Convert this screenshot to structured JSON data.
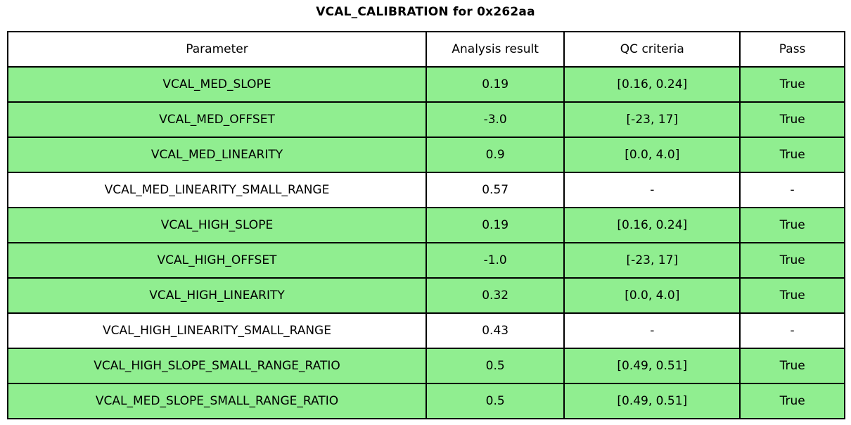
{
  "title": "VCAL_CALIBRATION for 0x262aa",
  "colors": {
    "pass_green": "#90EE90",
    "row_white": "#FFFFFF",
    "border": "#000000",
    "text": "#000000",
    "background": "#FFFFFF"
  },
  "chart_data": {
    "type": "table",
    "title": "VCAL_CALIBRATION for 0x262aa",
    "columns": [
      "Parameter",
      "Analysis result",
      "QC criteria",
      "Pass"
    ],
    "rows": [
      {
        "parameter": "VCAL_MED_SLOPE",
        "analysis_result": "0.19",
        "qc_criteria": "[0.16, 0.24]",
        "pass": "True",
        "highlighted": true
      },
      {
        "parameter": "VCAL_MED_OFFSET",
        "analysis_result": "-3.0",
        "qc_criteria": "[-23, 17]",
        "pass": "True",
        "highlighted": true
      },
      {
        "parameter": "VCAL_MED_LINEARITY",
        "analysis_result": "0.9",
        "qc_criteria": "[0.0, 4.0]",
        "pass": "True",
        "highlighted": true
      },
      {
        "parameter": "VCAL_MED_LINEARITY_SMALL_RANGE",
        "analysis_result": "0.57",
        "qc_criteria": "-",
        "pass": "-",
        "highlighted": false
      },
      {
        "parameter": "VCAL_HIGH_SLOPE",
        "analysis_result": "0.19",
        "qc_criteria": "[0.16, 0.24]",
        "pass": "True",
        "highlighted": true
      },
      {
        "parameter": "VCAL_HIGH_OFFSET",
        "analysis_result": "-1.0",
        "qc_criteria": "[-23, 17]",
        "pass": "True",
        "highlighted": true
      },
      {
        "parameter": "VCAL_HIGH_LINEARITY",
        "analysis_result": "0.32",
        "qc_criteria": "[0.0, 4.0]",
        "pass": "True",
        "highlighted": true
      },
      {
        "parameter": "VCAL_HIGH_LINEARITY_SMALL_RANGE",
        "analysis_result": "0.43",
        "qc_criteria": "-",
        "pass": "-",
        "highlighted": false
      },
      {
        "parameter": "VCAL_HIGH_SLOPE_SMALL_RANGE_RATIO",
        "analysis_result": "0.5",
        "qc_criteria": "[0.49, 0.51]",
        "pass": "True",
        "highlighted": true
      },
      {
        "parameter": "VCAL_MED_SLOPE_SMALL_RANGE_RATIO",
        "analysis_result": "0.5",
        "qc_criteria": "[0.49, 0.51]",
        "pass": "True",
        "highlighted": true
      }
    ]
  }
}
